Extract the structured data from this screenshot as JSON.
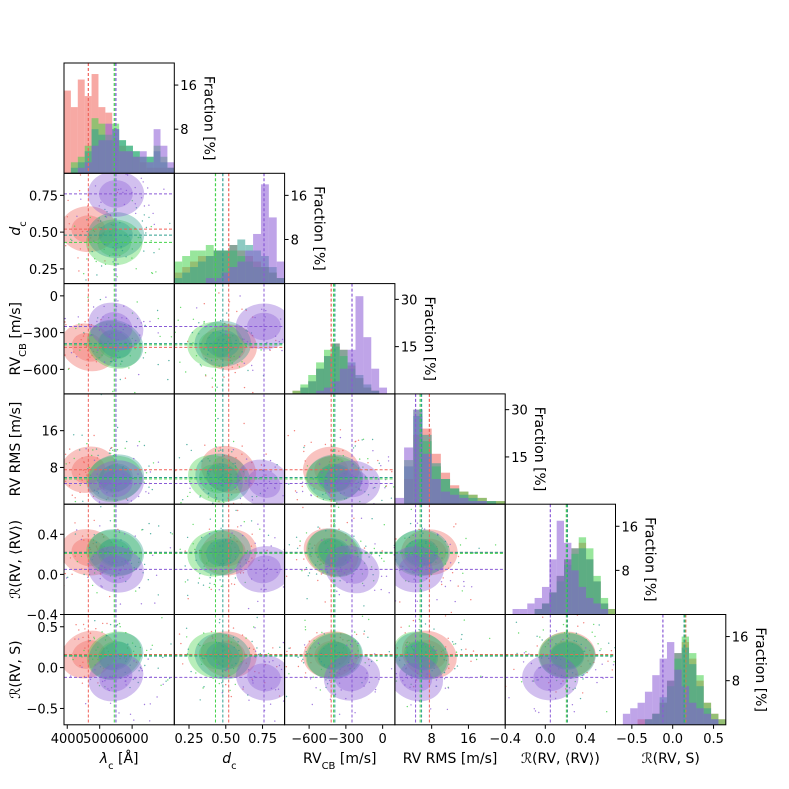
{
  "chart_data": {
    "type": "corner",
    "title": "",
    "colors": {
      "red": "#f0625a",
      "green": "#44d24a",
      "teal": "#2f9f8f",
      "purple": "#8a5ad6"
    },
    "series": [
      {
        "name": "red",
        "color": "#f0625a"
      },
      {
        "name": "green",
        "color": "#44d24a"
      },
      {
        "name": "teal",
        "color": "#2f9f8f"
      },
      {
        "name": "purple",
        "color": "#8a5ad6"
      }
    ],
    "variables": [
      {
        "key": "lambda_c",
        "xlabel_main": "λ",
        "xlabel_sub": "c",
        "xlabel_tail": " [Å]",
        "range": [
          3900,
          7300
        ],
        "ticks": [
          4000,
          5000,
          6000
        ],
        "tick_labels": [
          "4000",
          "5000",
          "6000"
        ],
        "medians": {
          "red": 4650,
          "green": 5450,
          "teal": 5500,
          "purple": 5500
        },
        "hist_ticks": [
          8,
          16
        ],
        "hist_tick_labels": [
          "8",
          "16"
        ],
        "hist_max": 20,
        "hist_bins": {
          "red": [
            15,
            12,
            17,
            14,
            18,
            12,
            11,
            6,
            5,
            4,
            3,
            2,
            1,
            1,
            1,
            1
          ],
          "green": [
            0,
            2,
            3,
            5,
            10,
            9,
            7,
            9,
            6,
            5,
            4,
            3,
            3,
            5,
            3,
            1
          ],
          "teal": [
            0,
            1,
            2,
            4,
            8,
            7,
            6,
            8,
            6,
            5,
            4,
            3,
            3,
            4,
            2,
            1
          ],
          "purple": [
            0,
            0,
            1,
            2,
            5,
            6,
            9,
            8,
            4,
            4,
            3,
            4,
            2,
            8,
            5,
            2
          ]
        }
      },
      {
        "key": "d_c",
        "label_main": "d",
        "label_sub": "c",
        "label_tail": "",
        "range": [
          0.15,
          0.9
        ],
        "ticks": [
          0.25,
          0.5,
          0.75
        ],
        "tick_labels": [
          "0.25",
          "0.50",
          "0.75"
        ],
        "medians": {
          "red": 0.52,
          "green": 0.43,
          "teal": 0.48,
          "purple": 0.76
        },
        "hist_ticks": [
          8,
          16
        ],
        "hist_tick_labels": [
          "8",
          "16"
        ],
        "hist_max": 20,
        "hist_bins": {
          "red": [
            2,
            3,
            4,
            5,
            5,
            6,
            6,
            7,
            6,
            5,
            4,
            3,
            2,
            1
          ],
          "green": [
            4,
            5,
            6,
            6,
            7,
            6,
            6,
            6,
            5,
            4,
            3,
            3,
            2,
            1
          ],
          "teal": [
            1,
            2,
            3,
            4,
            5,
            6,
            6,
            7,
            8,
            7,
            6,
            5,
            3,
            1
          ],
          "purple": [
            0,
            0,
            0,
            0,
            1,
            1,
            2,
            3,
            4,
            6,
            9,
            18,
            12,
            4
          ]
        }
      },
      {
        "key": "rv_cb",
        "label_main": "RV",
        "label_sub": "CB",
        "label_tail": " [m/s]",
        "range": [
          -800,
          100
        ],
        "ticks": [
          -600,
          -300,
          0
        ],
        "tick_labels": [
          "−600",
          "−300",
          "0"
        ],
        "medians": {
          "red": -420,
          "green": -400,
          "teal": -390,
          "purple": -250
        },
        "hist_ticks": [
          15,
          30
        ],
        "hist_tick_labels": [
          "15",
          "30"
        ],
        "hist_max": 35,
        "hist_bins": {
          "red": [
            0,
            1,
            2,
            4,
            8,
            12,
            16,
            14,
            9,
            5,
            2,
            1,
            0,
            0
          ],
          "green": [
            0,
            1,
            3,
            6,
            10,
            14,
            15,
            12,
            8,
            5,
            2,
            1,
            0,
            0
          ],
          "teal": [
            0,
            0,
            2,
            4,
            8,
            12,
            16,
            14,
            10,
            6,
            3,
            1,
            0,
            0
          ],
          "purple": [
            0,
            0,
            0,
            0,
            1,
            2,
            4,
            8,
            14,
            31,
            18,
            8,
            2,
            0
          ]
        }
      },
      {
        "key": "rv_rms",
        "label_main": "RV RMS",
        "label_sub": "",
        "label_tail": " [m/s]",
        "range": [
          0,
          24
        ],
        "ticks": [
          8,
          16
        ],
        "tick_labels": [
          "8",
          "16"
        ],
        "medians": {
          "red": 7.5,
          "green": 5.5,
          "teal": 5.8,
          "purple": 4.5
        },
        "hist_ticks": [
          15,
          30
        ],
        "hist_tick_labels": [
          "15",
          "30"
        ],
        "hist_max": 35,
        "hist_bins": {
          "red": [
            0,
            8,
            22,
            24,
            16,
            10,
            6,
            4,
            3,
            2,
            1,
            1
          ],
          "green": [
            0,
            14,
            30,
            20,
            12,
            8,
            5,
            4,
            3,
            2,
            1,
            1
          ],
          "teal": [
            0,
            12,
            28,
            22,
            13,
            8,
            5,
            3,
            2,
            1,
            1,
            0
          ],
          "purple": [
            2,
            18,
            30,
            16,
            8,
            4,
            3,
            2,
            1,
            1,
            0,
            0
          ]
        }
      },
      {
        "key": "r_rv_mean",
        "label_main": "ℛ(RV, ⟨RV⟩)",
        "label_sub": "",
        "label_tail": "",
        "range": [
          -0.4,
          0.7
        ],
        "ticks": [
          -0.4,
          0.0,
          0.4
        ],
        "tick_labels": [
          "−0.4",
          "0.0",
          "0.4"
        ],
        "medians": {
          "red": 0.22,
          "green": 0.21,
          "teal": 0.22,
          "purple": 0.05
        },
        "hist_ticks": [
          8,
          16
        ],
        "hist_tick_labels": [
          "8",
          "16"
        ],
        "hist_max": 20,
        "hist_bins": {
          "red": [
            0,
            0,
            0,
            0,
            1,
            2,
            4,
            7,
            10,
            12,
            13,
            10,
            6,
            2,
            1
          ],
          "green": [
            0,
            0,
            0,
            0,
            1,
            2,
            4,
            6,
            9,
            11,
            14,
            12,
            7,
            3,
            1
          ],
          "teal": [
            0,
            0,
            0,
            0,
            1,
            2,
            4,
            7,
            10,
            12,
            12,
            10,
            6,
            2,
            0
          ],
          "purple": [
            0,
            1,
            1,
            2,
            3,
            5,
            10,
            17,
            13,
            8,
            5,
            3,
            2,
            1,
            0
          ]
        }
      },
      {
        "key": "r_rv_s",
        "label_main": "ℛ(RV, S)",
        "label_sub": "",
        "label_tail": "",
        "range": [
          -0.7,
          0.65
        ],
        "ticks": [
          -0.5,
          0.0,
          0.5
        ],
        "tick_labels": [
          "−0.5",
          "0.0",
          "0.5"
        ],
        "medians": {
          "red": 0.16,
          "green": 0.15,
          "teal": 0.14,
          "purple": -0.12
        },
        "hist_ticks": [
          8,
          16
        ],
        "hist_tick_labels": [
          "8",
          "16"
        ],
        "hist_max": 20,
        "hist_bins": {
          "red": [
            0,
            0,
            0,
            1,
            1,
            2,
            4,
            8,
            13,
            15,
            12,
            8,
            4,
            2,
            1
          ],
          "green": [
            0,
            0,
            0,
            0,
            1,
            2,
            4,
            7,
            12,
            16,
            13,
            9,
            4,
            2,
            1
          ],
          "teal": [
            0,
            0,
            0,
            0,
            1,
            2,
            5,
            8,
            13,
            14,
            11,
            7,
            3,
            1,
            0
          ],
          "purple": [
            0,
            2,
            3,
            4,
            6,
            9,
            12,
            15,
            10,
            7,
            4,
            3,
            2,
            1,
            0
          ]
        }
      }
    ],
    "y_labels": [
      {
        "main": "d",
        "sub": "c",
        "tail": ""
      },
      {
        "main": "RV",
        "sub": "CB",
        "tail": " [m/s]"
      },
      {
        "main": "RV RMS",
        "sub": "",
        "tail": " [m/s]"
      },
      {
        "main": "ℛ(RV, ⟨RV⟩)",
        "sub": "",
        "tail": ""
      },
      {
        "main": "ℛ(RV, S)",
        "sub": "",
        "tail": ""
      }
    ],
    "x_labels": [
      {
        "main": "λ",
        "sub": "c",
        "tail": " [Å]"
      },
      {
        "main": "d",
        "sub": "c",
        "tail": ""
      },
      {
        "main": "RV",
        "sub": "CB",
        "tail": " [m/s]"
      },
      {
        "main": "RV RMS",
        "sub": "",
        "tail": " [m/s]"
      },
      {
        "main": "ℛ(RV, ⟨RV⟩)",
        "sub": "",
        "tail": ""
      },
      {
        "main": "ℛ(RV, S)",
        "sub": "",
        "tail": ""
      }
    ],
    "hist_axis_label": "Fraction [%]"
  }
}
